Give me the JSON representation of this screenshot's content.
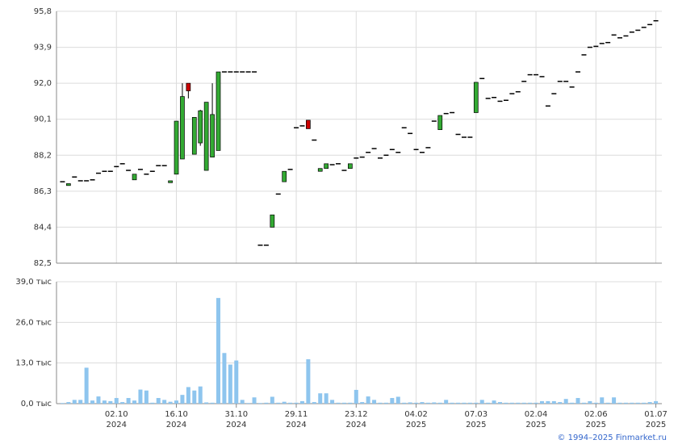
{
  "chart_data": [
    {
      "type": "candlestick",
      "xlim": [
        -1,
        100
      ],
      "ylim": [
        82.5,
        95.8
      ],
      "yticks": [
        {
          "value": 82.5,
          "label": "82,5"
        },
        {
          "value": 84.4,
          "label": "84,4"
        },
        {
          "value": 86.3,
          "label": "86,3"
        },
        {
          "value": 88.2,
          "label": "88,2"
        },
        {
          "value": 90.1,
          "label": "90,1"
        },
        {
          "value": 92.0,
          "label": "92,0"
        },
        {
          "value": 93.9,
          "label": "93,9"
        },
        {
          "value": 95.8,
          "label": "95,8"
        }
      ],
      "grid": true,
      "up_color": "#33aa33",
      "down_color": "#cc0000",
      "flat_color": "#000000",
      "open": [
        86.8,
        86.6,
        87.05,
        86.85,
        86.85,
        86.9,
        87.25,
        87.35,
        87.35,
        87.6,
        87.75,
        87.4,
        86.9,
        87.45,
        87.2,
        87.35,
        87.65,
        87.65,
        86.75,
        87.2,
        88.0,
        92.0,
        88.25,
        88.85,
        87.4,
        88.1,
        88.45,
        92.6,
        92.6,
        92.6,
        92.6,
        92.6,
        92.6,
        83.45,
        83.45,
        84.4,
        86.15,
        86.8,
        87.45,
        89.65,
        89.75,
        90.05,
        89.0,
        87.35,
        87.5,
        87.7,
        87.75,
        87.4,
        87.5,
        88.05,
        88.1,
        88.35,
        88.55,
        88.05,
        88.2,
        88.5,
        88.35,
        89.65,
        89.35,
        88.5,
        88.35,
        88.6,
        90.0,
        89.55,
        90.4,
        90.45,
        89.3,
        89.15,
        89.15,
        90.45,
        92.25,
        91.2,
        91.25,
        91.05,
        91.1,
        91.45,
        91.55,
        92.1,
        92.45,
        92.45,
        92.35,
        90.8,
        91.45,
        92.1,
        92.1,
        91.8,
        92.6,
        93.5,
        93.9,
        93.95,
        94.1,
        94.15,
        94.55,
        94.4,
        94.5,
        94.7,
        94.8,
        94.95,
        95.1,
        95.3
      ],
      "close": [
        86.8,
        86.7,
        87.05,
        86.85,
        86.85,
        86.9,
        87.25,
        87.35,
        87.35,
        87.6,
        87.75,
        87.4,
        87.2,
        87.45,
        87.2,
        87.35,
        87.65,
        87.65,
        86.85,
        90.0,
        91.3,
        91.6,
        90.2,
        90.55,
        91.0,
        90.35,
        92.6,
        92.6,
        92.6,
        92.6,
        92.6,
        92.6,
        92.6,
        83.45,
        83.45,
        85.05,
        86.15,
        87.35,
        87.45,
        89.65,
        89.75,
        89.6,
        89.0,
        87.5,
        87.75,
        87.7,
        87.75,
        87.4,
        87.75,
        88.05,
        88.1,
        88.35,
        88.55,
        88.05,
        88.2,
        88.5,
        88.35,
        89.65,
        89.35,
        88.5,
        88.35,
        88.6,
        90.0,
        90.3,
        90.4,
        90.45,
        89.3,
        89.15,
        89.15,
        92.05,
        92.25,
        91.2,
        91.25,
        91.05,
        91.1,
        91.45,
        91.55,
        92.1,
        92.45,
        92.45,
        92.35,
        90.8,
        91.45,
        92.1,
        92.1,
        91.8,
        92.6,
        93.5,
        93.9,
        93.95,
        94.1,
        94.15,
        94.55,
        94.4,
        94.5,
        94.7,
        94.8,
        94.95,
        95.1,
        95.3
      ],
      "high": [
        86.8,
        86.7,
        87.05,
        86.85,
        86.85,
        86.9,
        87.25,
        87.35,
        87.35,
        87.6,
        87.75,
        87.4,
        87.2,
        87.45,
        87.2,
        87.35,
        87.65,
        87.65,
        86.85,
        90.0,
        92.0,
        92.0,
        90.2,
        90.6,
        91.0,
        92.0,
        92.6,
        92.6,
        92.6,
        92.6,
        92.6,
        92.6,
        92.6,
        83.45,
        83.45,
        85.05,
        86.15,
        87.35,
        87.45,
        89.65,
        89.75,
        90.05,
        89.0,
        87.5,
        87.75,
        87.7,
        87.75,
        87.4,
        87.75,
        88.05,
        88.1,
        88.35,
        88.55,
        88.05,
        88.2,
        88.5,
        88.35,
        89.65,
        89.35,
        88.5,
        88.35,
        88.6,
        90.0,
        90.3,
        90.4,
        90.45,
        89.3,
        89.15,
        89.15,
        92.05,
        92.25,
        91.2,
        91.25,
        91.05,
        91.1,
        91.45,
        91.55,
        92.1,
        92.45,
        92.45,
        92.35,
        90.8,
        91.45,
        92.1,
        92.1,
        91.8,
        92.6,
        93.5,
        93.9,
        93.95,
        94.1,
        94.15,
        94.55,
        94.4,
        94.5,
        94.7,
        94.8,
        94.95,
        95.1,
        95.3
      ],
      "low": [
        86.8,
        86.6,
        87.05,
        86.85,
        86.85,
        86.9,
        87.25,
        87.35,
        87.35,
        87.6,
        87.75,
        87.4,
        86.9,
        87.45,
        87.2,
        87.35,
        87.65,
        87.65,
        86.75,
        87.2,
        88.0,
        91.2,
        88.25,
        88.7,
        87.4,
        88.1,
        88.45,
        92.6,
        92.6,
        92.6,
        92.6,
        92.6,
        92.6,
        83.45,
        83.45,
        84.4,
        86.15,
        86.8,
        87.45,
        89.65,
        89.75,
        89.6,
        89.0,
        87.35,
        87.5,
        87.7,
        87.75,
        87.4,
        87.5,
        88.05,
        88.1,
        88.35,
        88.55,
        88.05,
        88.2,
        88.5,
        88.35,
        89.65,
        89.35,
        88.5,
        88.35,
        88.6,
        90.0,
        89.55,
        90.4,
        90.45,
        89.3,
        89.15,
        89.15,
        90.45,
        92.25,
        91.2,
        91.25,
        91.05,
        91.1,
        91.45,
        91.55,
        92.1,
        92.45,
        92.45,
        92.35,
        90.8,
        91.45,
        92.1,
        92.1,
        91.8,
        92.6,
        93.5,
        93.9,
        93.95,
        94.1,
        94.15,
        94.55,
        94.4,
        94.5,
        94.7,
        94.8,
        94.95,
        95.1,
        95.3
      ]
    },
    {
      "type": "bar",
      "xlim": [
        -1,
        100
      ],
      "ylim": [
        0,
        39
      ],
      "yticks": [
        {
          "value": 0,
          "label": "0,0 тыс"
        },
        {
          "value": 13,
          "label": "13,0 тыс"
        },
        {
          "value": 26,
          "label": "26,0 тыс"
        },
        {
          "value": 39,
          "label": "39,0 тыс"
        }
      ],
      "xticks": [
        {
          "value": 9,
          "label": "02.10",
          "sublabel": "2024"
        },
        {
          "value": 19,
          "label": "16.10",
          "sublabel": "2024"
        },
        {
          "value": 29,
          "label": "31.10",
          "sublabel": "2024"
        },
        {
          "value": 39,
          "label": "29.11",
          "sublabel": "2024"
        },
        {
          "value": 49,
          "label": "23.12",
          "sublabel": "2024"
        },
        {
          "value": 59,
          "label": "04.02",
          "sublabel": "2025"
        },
        {
          "value": 69,
          "label": "07.03",
          "sublabel": "2025"
        },
        {
          "value": 79,
          "label": "02.04",
          "sublabel": "2025"
        },
        {
          "value": 89,
          "label": "02.06",
          "sublabel": "2025"
        },
        {
          "value": 99,
          "label": "01.07",
          "sublabel": "2025"
        }
      ],
      "grid": true,
      "color": "#8ec5ee",
      "values": [
        0.2,
        0.5,
        1.2,
        1.2,
        11.5,
        1.0,
        2.3,
        1.0,
        0.8,
        1.8,
        0.5,
        1.8,
        1.0,
        4.5,
        4.2,
        0.3,
        1.8,
        1.2,
        0.6,
        1.0,
        2.8,
        5.3,
        4.2,
        5.5,
        0.4,
        0.3,
        33.8,
        16.2,
        12.5,
        13.8,
        1.2,
        0.2,
        2.0,
        0.2,
        0.3,
        2.2,
        0.3,
        0.6,
        0.3,
        0.3,
        0.8,
        14.2,
        0.5,
        3.3,
        3.3,
        1.2,
        0.3,
        0.3,
        0.3,
        4.4,
        0.5,
        2.3,
        1.2,
        0.3,
        0.3,
        1.8,
        2.2,
        0.3,
        0.4,
        0.3,
        0.5,
        0.3,
        0.4,
        0.3,
        1.2,
        0.3,
        0.3,
        0.3,
        0.3,
        0.3,
        1.2,
        0.3,
        1.0,
        0.5,
        0.3,
        0.3,
        0.3,
        0.3,
        0.3,
        0.3,
        0.8,
        0.8,
        0.8,
        0.5,
        1.5,
        0.3,
        1.8,
        0.3,
        0.8,
        0.3,
        2.0,
        0.3,
        2.0,
        0.3,
        0.3,
        0.3,
        0.3,
        0.3,
        0.5,
        0.8
      ]
    }
  ],
  "footer": "© 1994–2025 Finmarket.ru"
}
